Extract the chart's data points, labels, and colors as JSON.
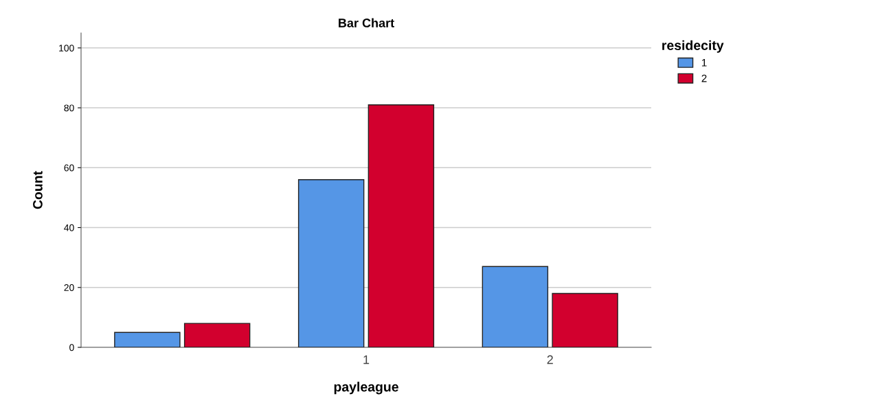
{
  "chart_data": {
    "type": "bar",
    "title": "Bar Chart",
    "xlabel": "payleague",
    "ylabel": "Count",
    "legend_title": "residecity",
    "categories": [
      null,
      "1",
      "2"
    ],
    "series": [
      {
        "name": "1",
        "color": "#5596e6",
        "values": [
          5,
          56,
          27
        ]
      },
      {
        "name": "2",
        "color": "#d2002e",
        "values": [
          8,
          81,
          18
        ]
      }
    ],
    "ylim": [
      0,
      105
    ],
    "yticks": [
      0,
      20,
      40,
      60,
      80,
      100
    ],
    "grid": "y",
    "legend": "top right"
  }
}
